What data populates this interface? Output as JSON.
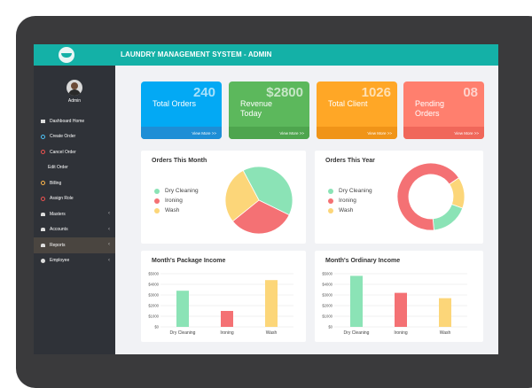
{
  "app": {
    "title": "LAUNDRY MANAGEMENT SYSTEM - ADMIN"
  },
  "user": {
    "name": "Admin"
  },
  "sidebar": {
    "items": [
      {
        "label": "Dashboard Home",
        "icon": "dashboard-icon",
        "color": "#dddddd"
      },
      {
        "label": "Create Order",
        "icon": "circle-icon",
        "color": "#4fc3f7"
      },
      {
        "label": "Cancel Order",
        "icon": "circle-icon",
        "color": "#ef5350"
      },
      {
        "label": "Edit Order",
        "icon": "",
        "color": ""
      },
      {
        "label": "Billing",
        "icon": "circle-icon",
        "color": "#ffb74d"
      },
      {
        "label": "Assign Role",
        "icon": "circle-icon",
        "color": "#ef5350"
      },
      {
        "label": "Masters",
        "icon": "folder-icon",
        "color": "#dddddd"
      },
      {
        "label": "Accounts",
        "icon": "folder-icon",
        "color": "#dddddd"
      },
      {
        "label": "Reports",
        "icon": "folder-icon",
        "color": "#dddddd"
      },
      {
        "label": "Employee",
        "icon": "globe-icon",
        "color": "#dddddd"
      }
    ]
  },
  "cards": [
    {
      "value": "240",
      "label": "Total Orders",
      "more": "View More >>",
      "color": "#03a9f4",
      "footer": "#1e8ed6"
    },
    {
      "value": "$2800",
      "label": "Revenue Today",
      "more": "View More >>",
      "color": "#5cb85c",
      "footer": "#4ea54e"
    },
    {
      "value": "1026",
      "label": "Total Client",
      "more": "View More >>",
      "color": "#ffa726",
      "footer": "#f09418"
    },
    {
      "value": "08",
      "label": "Pending Orders",
      "more": "View More >>",
      "color": "#ff7f6e",
      "footer": "#f0675a"
    }
  ],
  "chart_data": [
    {
      "type": "pie",
      "title": "Orders This Month",
      "series": [
        {
          "name": "Dry Cleaning",
          "value": 40,
          "color": "#8be3b6"
        },
        {
          "name": "Ironing",
          "value": 32,
          "color": "#f47174"
        },
        {
          "name": "Wash",
          "value": 28,
          "color": "#fcd679"
        }
      ]
    },
    {
      "type": "pie",
      "title": "Orders This Year",
      "donut": true,
      "series": [
        {
          "name": "Dry Cleaning",
          "value": 18,
          "color": "#8be3b6"
        },
        {
          "name": "Ironing",
          "value": 67,
          "color": "#f47174"
        },
        {
          "name": "Wash",
          "value": 15,
          "color": "#fcd679"
        }
      ]
    },
    {
      "type": "bar",
      "title": "Month's Package Income",
      "categories": [
        "Dry Cleaning",
        "Ironing",
        "Wash"
      ],
      "values": [
        3400,
        1500,
        4400
      ],
      "colors": [
        "#8be3b6",
        "#f47174",
        "#fcd679"
      ],
      "yticks": [
        "$0",
        "$1000",
        "$2000",
        "$3000",
        "$4000",
        "$5000"
      ],
      "ylim": [
        0,
        5000
      ],
      "grid": true
    },
    {
      "type": "bar",
      "title": "Month's Ordinary Income",
      "categories": [
        "Dry Cleaning",
        "Ironing",
        "Wash"
      ],
      "values": [
        4800,
        3200,
        2700
      ],
      "colors": [
        "#8be3b6",
        "#f47174",
        "#fcd679"
      ],
      "yticks": [
        "$0",
        "$1000",
        "$2000",
        "$3000",
        "$4000",
        "$5000"
      ],
      "ylim": [
        0,
        5000
      ],
      "grid": true
    }
  ]
}
